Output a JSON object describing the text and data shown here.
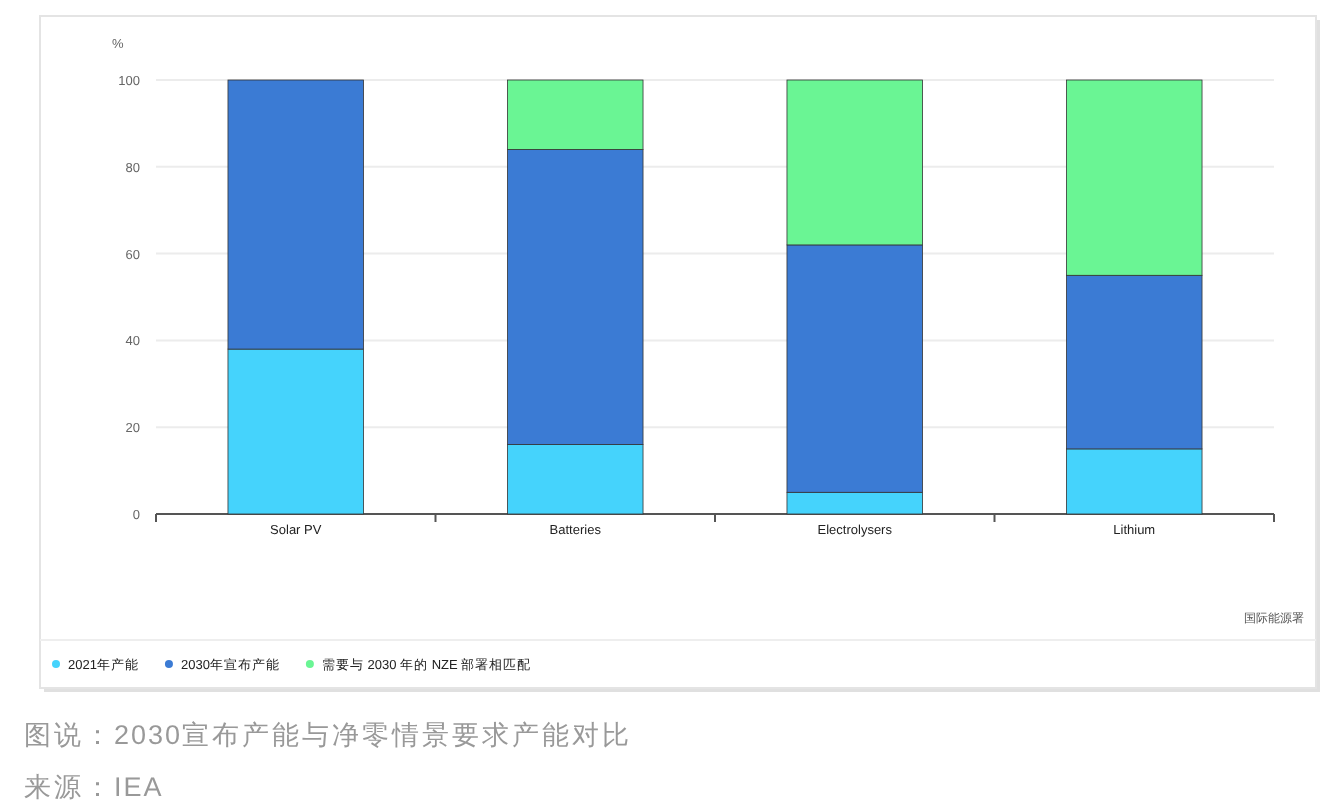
{
  "chart_data": {
    "type": "bar",
    "stacked": true,
    "ylabel": "%",
    "categories": [
      "Solar PV",
      "Batteries",
      "Electrolysers",
      "Lithium"
    ],
    "series": [
      {
        "name": "2021年产能",
        "color": "#45d3fc",
        "values": [
          38,
          16,
          5,
          15
        ]
      },
      {
        "name": "2030年宣布产能",
        "color": "#3b7bd4",
        "values": [
          62,
          68,
          57,
          40
        ]
      },
      {
        "name": "需要与 2030 年的 NZE 部署相匹配",
        "color": "#6af594",
        "values": [
          0,
          16,
          38,
          45
        ]
      }
    ],
    "ylim": [
      0,
      100
    ],
    "yticks": [
      0,
      20,
      40,
      60,
      80,
      100
    ],
    "grid": "y",
    "legend": "bottom",
    "annotations": [
      "国际能源署",
      "图说：2030宣布产能与净零情景要求产能对比",
      "来源：IEA"
    ]
  }
}
